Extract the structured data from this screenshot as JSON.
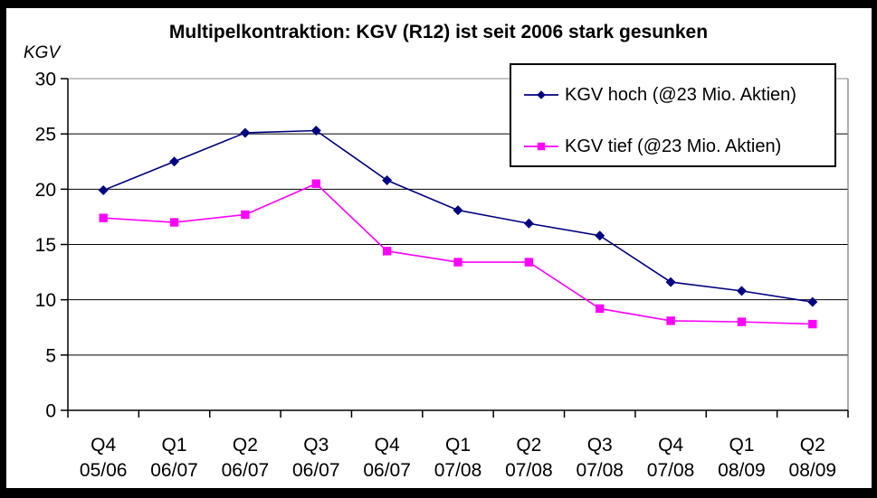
{
  "frame": {
    "background": "#ffffff",
    "border_color": "#000000"
  },
  "chart_data": {
    "type": "line",
    "title": "Multipelkontraktion: KGV (R12) ist seit 2006 stark gesunken",
    "ylabel": "KGV",
    "xlabel": "",
    "categories": [
      "Q4 05/06",
      "Q1 06/07",
      "Q2 06/07",
      "Q3 06/07",
      "Q4 06/07",
      "Q1 07/08",
      "Q2 07/08",
      "Q3 07/08",
      "Q4 07/08",
      "Q1 08/09",
      "Q2 08/09"
    ],
    "y_ticks": [
      0,
      5,
      10,
      15,
      20,
      25,
      30
    ],
    "ylim": [
      0,
      30
    ],
    "grid": true,
    "gridline_color": "#000000",
    "plot_frame_color": "#a0a0a0",
    "legend_position": "top-right-inside",
    "series": [
      {
        "name": "KGV hoch (@23 Mio. Aktien)",
        "color": "#000080",
        "marker": "diamond",
        "values": [
          19.9,
          22.5,
          25.1,
          25.3,
          20.8,
          18.1,
          16.9,
          15.8,
          11.6,
          10.8,
          9.8
        ]
      },
      {
        "name": "KGV tief (@23 Mio. Aktien)",
        "color": "#ff00ff",
        "marker": "square",
        "values": [
          17.4,
          17.0,
          17.7,
          20.5,
          14.4,
          13.4,
          13.4,
          9.2,
          8.1,
          8.0,
          7.8
        ]
      }
    ]
  }
}
